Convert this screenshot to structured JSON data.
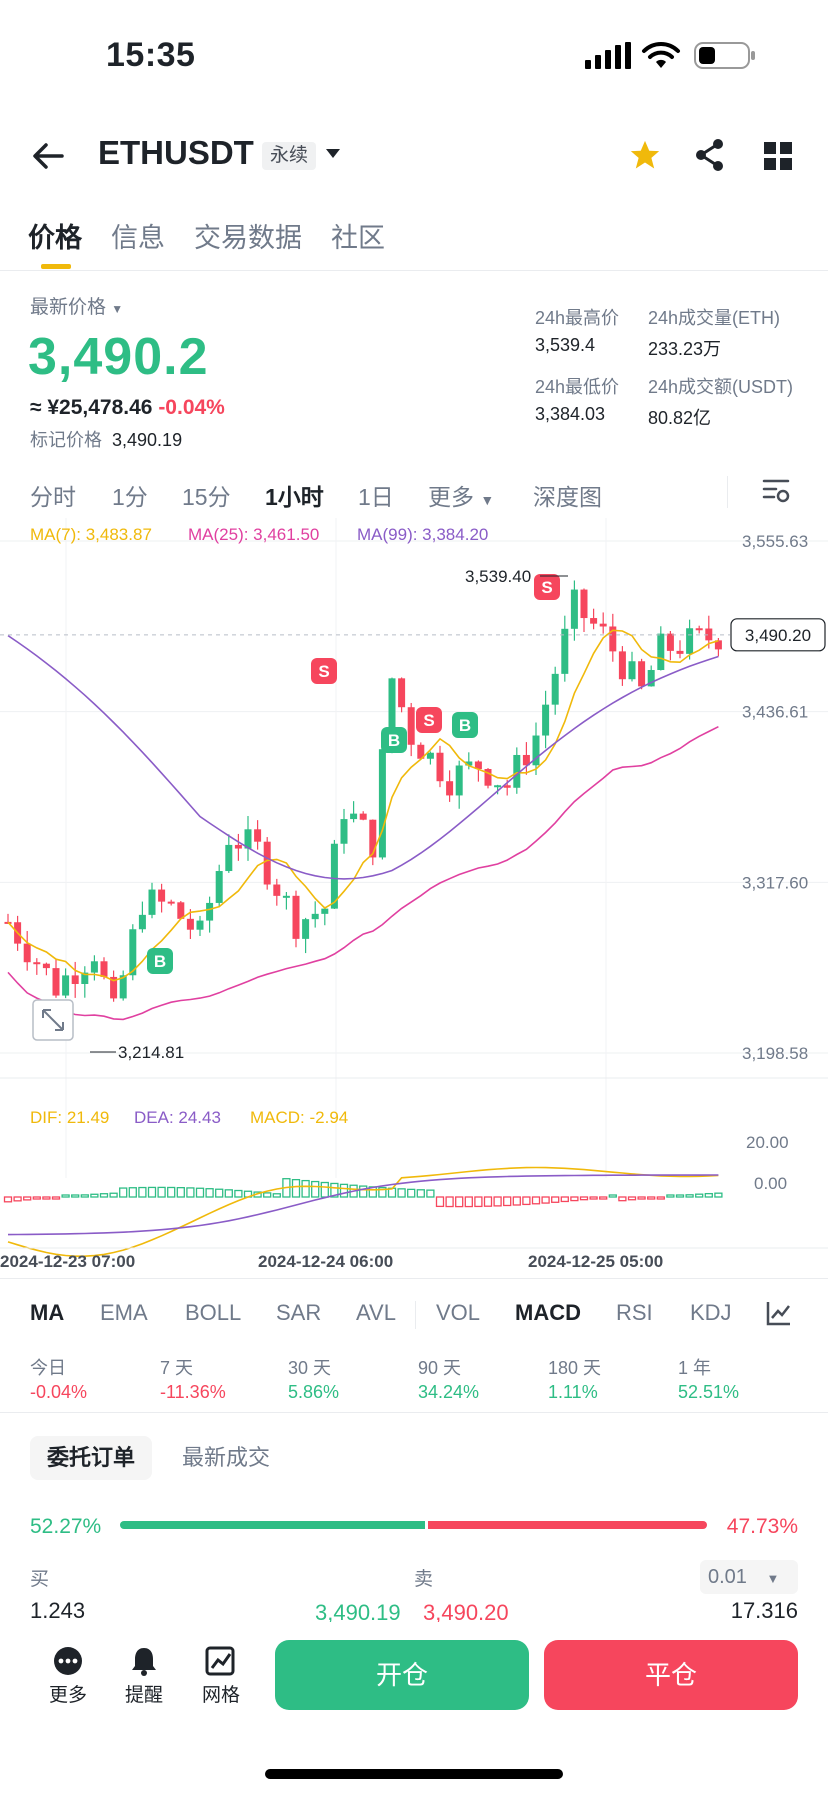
{
  "status": {
    "time": "15:35"
  },
  "header": {
    "symbol": "ETHUSDT",
    "badge": "永续"
  },
  "tabs": [
    "价格",
    "信息",
    "交易数据",
    "社区"
  ],
  "price": {
    "label": "最新价格",
    "last": "3,490.2",
    "cny": "≈ ¥25,478.46",
    "change": "-0.04%",
    "mark_label": "标记价格",
    "mark_value": "3,490.19",
    "high_label": "24h最高价",
    "high": "3,539.4",
    "vol_eth_label": "24h成交量(ETH)",
    "vol_eth": "233.23万",
    "low_label": "24h最低价",
    "low": "3,384.03",
    "vol_usdt_label": "24h成交额(USDT)",
    "vol_usdt": "80.82亿"
  },
  "timeframes": [
    "分时",
    "1分",
    "15分",
    "1小时",
    "1日",
    "更多",
    "深度图"
  ],
  "chart": {
    "ma7": "MA(7): 3,483.87",
    "ma25": "MA(25): 3,461.50",
    "ma99": "MA(99): 3,384.20",
    "y_labels": [
      "3,555.63",
      "3,436.61",
      "3,317.60",
      "3,198.58"
    ],
    "current_price": "3,490.20",
    "high_marker": "3,539.40",
    "low_marker": "3,214.81",
    "dif": "DIF: 21.49",
    "dea": "DEA: 24.43",
    "macd": "MACD: -2.94",
    "macd_y": [
      "20.00",
      "0.00"
    ],
    "x_labels": [
      "2024-12-23 07:00",
      "2024-12-24 06:00",
      "2024-12-25 05:00"
    ],
    "buy_tag": "B",
    "sell_tag": "S",
    "colors": {
      "up": "#2ebd85",
      "down": "#f6465d",
      "ma7": "#f0b90b",
      "ma25": "#e040a0",
      "ma99": "#8a5cc7"
    }
  },
  "chart_data": {
    "type": "candlestick",
    "interval": "1h",
    "ylim": [
      3198.58,
      3555.63
    ],
    "series": [
      {
        "name": "MA(7)",
        "last": 3483.87
      },
      {
        "name": "MA(25)",
        "last": 3461.5
      },
      {
        "name": "MA(99)",
        "last": 3384.2
      }
    ],
    "annotations": {
      "high": 3539.4,
      "low": 3214.81,
      "current": 3490.2
    },
    "macd": {
      "dif": 21.49,
      "dea": 24.43,
      "macd": -2.94
    }
  },
  "indicators": [
    "MA",
    "EMA",
    "BOLL",
    "SAR",
    "AVL",
    "VOL",
    "MACD",
    "RSI",
    "KDJ"
  ],
  "performance": [
    {
      "label": "今日",
      "value": "-0.04%",
      "dir": "down"
    },
    {
      "label": "7 天",
      "value": "-11.36%",
      "dir": "down"
    },
    {
      "label": "30 天",
      "value": "5.86%",
      "dir": "up"
    },
    {
      "label": "90 天",
      "value": "34.24%",
      "dir": "up"
    },
    {
      "label": "180 天",
      "value": "1.11%",
      "dir": "up"
    },
    {
      "label": "1 年",
      "value": "52.51%",
      "dir": "up"
    }
  ],
  "orderbook": {
    "tab_active": "委托订单",
    "tab_other": "最新成交",
    "buy_ratio": "52.27%",
    "sell_ratio": "47.73%",
    "buy_label": "买",
    "sell_label": "卖",
    "precision": "0.01",
    "bid_qty": "1.243",
    "bid_price": "3,490.19",
    "ask_price": "3,490.20",
    "ask_qty": "17.316"
  },
  "bottom": {
    "more": "更多",
    "alert": "提醒",
    "grid": "网格",
    "open": "开仓",
    "close": "平仓"
  }
}
